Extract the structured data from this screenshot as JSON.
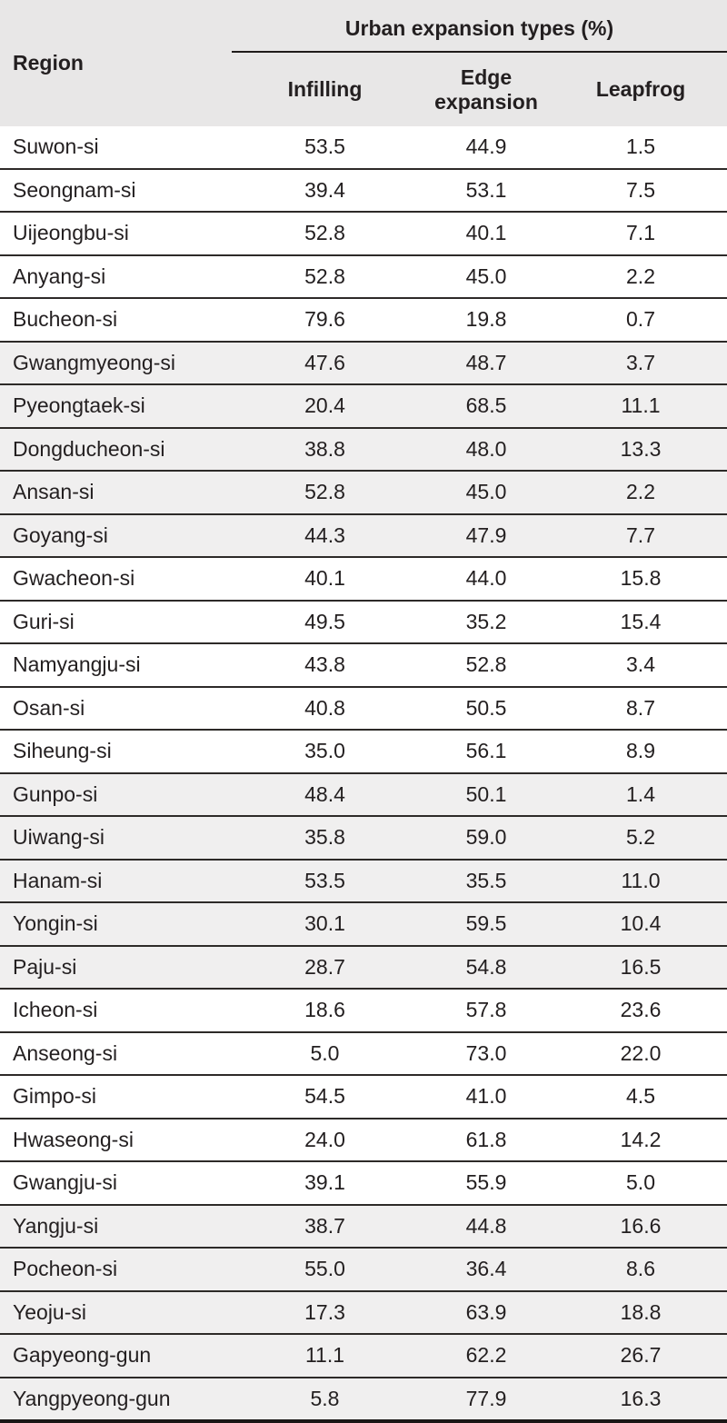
{
  "table": {
    "region_header": "Region",
    "group_header": "Urban expansion types (%)",
    "columns": [
      "Infilling",
      "Edge expansion",
      "Leapfrog"
    ],
    "rows": [
      {
        "region": "Suwon-si",
        "infilling": "53.5",
        "edge_expansion": "44.9",
        "leapfrog": "1.5"
      },
      {
        "region": "Seongnam-si",
        "infilling": "39.4",
        "edge_expansion": "53.1",
        "leapfrog": "7.5"
      },
      {
        "region": "Uijeongbu-si",
        "infilling": "52.8",
        "edge_expansion": "40.1",
        "leapfrog": "7.1"
      },
      {
        "region": "Anyang-si",
        "infilling": "52.8",
        "edge_expansion": "45.0",
        "leapfrog": "2.2"
      },
      {
        "region": "Bucheon-si",
        "infilling": "79.6",
        "edge_expansion": "19.8",
        "leapfrog": "0.7"
      },
      {
        "region": "Gwangmyeong-si",
        "infilling": "47.6",
        "edge_expansion": "48.7",
        "leapfrog": "3.7"
      },
      {
        "region": "Pyeongtaek-si",
        "infilling": "20.4",
        "edge_expansion": "68.5",
        "leapfrog": "11.1"
      },
      {
        "region": "Dongducheon-si",
        "infilling": "38.8",
        "edge_expansion": "48.0",
        "leapfrog": "13.3"
      },
      {
        "region": "Ansan-si",
        "infilling": "52.8",
        "edge_expansion": "45.0",
        "leapfrog": "2.2"
      },
      {
        "region": "Goyang-si",
        "infilling": "44.3",
        "edge_expansion": "47.9",
        "leapfrog": "7.7"
      },
      {
        "region": "Gwacheon-si",
        "infilling": "40.1",
        "edge_expansion": "44.0",
        "leapfrog": "15.8"
      },
      {
        "region": "Guri-si",
        "infilling": "49.5",
        "edge_expansion": "35.2",
        "leapfrog": "15.4"
      },
      {
        "region": "Namyangju-si",
        "infilling": "43.8",
        "edge_expansion": "52.8",
        "leapfrog": "3.4"
      },
      {
        "region": "Osan-si",
        "infilling": "40.8",
        "edge_expansion": "50.5",
        "leapfrog": "8.7"
      },
      {
        "region": "Siheung-si",
        "infilling": "35.0",
        "edge_expansion": "56.1",
        "leapfrog": "8.9"
      },
      {
        "region": "Gunpo-si",
        "infilling": "48.4",
        "edge_expansion": "50.1",
        "leapfrog": "1.4"
      },
      {
        "region": "Uiwang-si",
        "infilling": "35.8",
        "edge_expansion": "59.0",
        "leapfrog": "5.2"
      },
      {
        "region": "Hanam-si",
        "infilling": "53.5",
        "edge_expansion": "35.5",
        "leapfrog": "11.0"
      },
      {
        "region": "Yongin-si",
        "infilling": "30.1",
        "edge_expansion": "59.5",
        "leapfrog": "10.4"
      },
      {
        "region": "Paju-si",
        "infilling": "28.7",
        "edge_expansion": "54.8",
        "leapfrog": "16.5"
      },
      {
        "region": "Icheon-si",
        "infilling": "18.6",
        "edge_expansion": "57.8",
        "leapfrog": "23.6"
      },
      {
        "region": "Anseong-si",
        "infilling": "5.0",
        "edge_expansion": "73.0",
        "leapfrog": "22.0"
      },
      {
        "region": "Gimpo-si",
        "infilling": "54.5",
        "edge_expansion": "41.0",
        "leapfrog": "4.5"
      },
      {
        "region": "Hwaseong-si",
        "infilling": "24.0",
        "edge_expansion": "61.8",
        "leapfrog": "14.2"
      },
      {
        "region": "Gwangju-si",
        "infilling": "39.1",
        "edge_expansion": "55.9",
        "leapfrog": "5.0"
      },
      {
        "region": "Yangju-si",
        "infilling": "38.7",
        "edge_expansion": "44.8",
        "leapfrog": "16.6"
      },
      {
        "region": "Pocheon-si",
        "infilling": "55.0",
        "edge_expansion": "36.4",
        "leapfrog": "8.6"
      },
      {
        "region": "Yeoju-si",
        "infilling": "17.3",
        "edge_expansion": "63.9",
        "leapfrog": "18.8"
      },
      {
        "region": "Gapyeong-gun",
        "infilling": "11.1",
        "edge_expansion": "62.2",
        "leapfrog": "26.7"
      },
      {
        "region": "Yangpyeong-gun",
        "infilling": "5.8",
        "edge_expansion": "77.9",
        "leapfrog": "16.3"
      }
    ]
  },
  "colors": {
    "header_bg": "#e8e7e7",
    "stripe_bg": "#f0efef",
    "text": "#231f20",
    "row_rule": "#2d2a28",
    "heavy_rule": "#1a1716"
  },
  "stripe_pattern": "alternating groups of 5 rows shaded"
}
